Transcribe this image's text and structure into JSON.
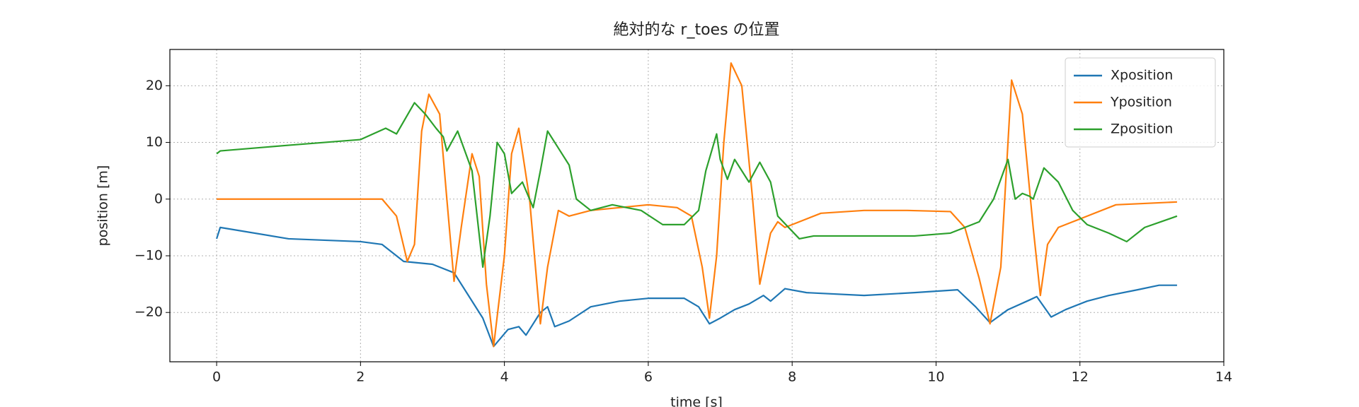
{
  "chart_data": {
    "type": "line",
    "title": "絶対的な r_toes の位置",
    "xlabel": "time [s]",
    "ylabel": "position [m]",
    "xlim": [
      -0.65,
      14
    ],
    "ylim": [
      -28.7,
      26.4
    ],
    "xticks": [
      0,
      2,
      4,
      6,
      8,
      10,
      12,
      14
    ],
    "yticks": [
      {
        "value": -20,
        "label": "−20"
      },
      {
        "value": -10,
        "label": "−10"
      },
      0,
      10,
      20
    ],
    "grid": true,
    "legend": "upper right",
    "series": [
      {
        "name": "Xposition",
        "color": "#1f77b4",
        "x": [
          0,
          0.05,
          1,
          2,
          2.3,
          2.6,
          3.0,
          3.3,
          3.5,
          3.7,
          3.85,
          4.05,
          4.2,
          4.3,
          4.5,
          4.6,
          4.7,
          4.9,
          5.2,
          5.6,
          6.0,
          6.5,
          6.7,
          6.85,
          7.0,
          7.2,
          7.4,
          7.6,
          7.7,
          7.9,
          8.2,
          9.0,
          9.7,
          10.3,
          10.55,
          10.75,
          11.0,
          11.3,
          11.4,
          11.6,
          11.8,
          12.1,
          12.4,
          12.8,
          13.1,
          13.35
        ],
        "values": [
          -7,
          -5,
          -7,
          -7.5,
          -8,
          -11,
          -11.5,
          -13,
          -17,
          -21,
          -26,
          -23,
          -22.5,
          -24,
          -20,
          -19,
          -22.5,
          -21.5,
          -19,
          -18,
          -17.5,
          -17.5,
          -19,
          -22,
          -21,
          -19.5,
          -18.5,
          -17,
          -18,
          -15.8,
          -16.5,
          -17,
          -16.5,
          -16,
          -19,
          -21.8,
          -19.5,
          -17.8,
          -17.2,
          -20.8,
          -19.5,
          -18,
          -17,
          -16,
          -15.2,
          -15.2
        ]
      },
      {
        "name": "Yposition",
        "color": "#ff7f0e",
        "x": [
          0,
          2.2,
          2.3,
          2.5,
          2.65,
          2.75,
          2.85,
          2.95,
          3.1,
          3.2,
          3.3,
          3.4,
          3.55,
          3.65,
          3.75,
          3.85,
          4.0,
          4.1,
          4.2,
          4.35,
          4.5,
          4.6,
          4.75,
          4.9,
          5.2,
          5.6,
          6.0,
          6.4,
          6.6,
          6.75,
          6.85,
          6.95,
          7.05,
          7.15,
          7.3,
          7.45,
          7.55,
          7.7,
          7.8,
          7.9,
          8.0,
          8.4,
          9.0,
          9.6,
          10.2,
          10.4,
          10.6,
          10.75,
          10.9,
          11.0,
          11.05,
          11.2,
          11.35,
          11.45,
          11.55,
          11.7,
          11.9,
          12.1,
          12.5,
          13.35
        ],
        "values": [
          0,
          0,
          0,
          -3,
          -11,
          -8,
          12,
          18.5,
          15,
          0,
          -14.5,
          -5,
          8,
          4,
          -15,
          -26,
          -10,
          8,
          12.5,
          0,
          -22,
          -12,
          -2,
          -3,
          -2,
          -1.5,
          -1,
          -1.5,
          -3,
          -12,
          -21,
          -10,
          10,
          24,
          20,
          0,
          -15,
          -6,
          -4,
          -5,
          -4.5,
          -2.5,
          -2,
          -2,
          -2.2,
          -5,
          -14,
          -22,
          -12,
          10,
          21,
          15,
          -5,
          -17,
          -8,
          -5,
          -4,
          -3,
          -1,
          -0.5
        ]
      },
      {
        "name": "Zposition",
        "color": "#2ca02c",
        "x": [
          0,
          0.05,
          1,
          2,
          2.35,
          2.5,
          2.75,
          2.9,
          3.05,
          3.15,
          3.2,
          3.35,
          3.55,
          3.7,
          3.8,
          3.9,
          4.0,
          4.1,
          4.25,
          4.4,
          4.5,
          4.6,
          4.75,
          4.9,
          5.0,
          5.2,
          5.5,
          5.9,
          6.2,
          6.5,
          6.7,
          6.8,
          6.95,
          7.0,
          7.1,
          7.2,
          7.4,
          7.55,
          7.7,
          7.8,
          8.1,
          8.3,
          9.0,
          9.7,
          10.2,
          10.4,
          10.6,
          10.8,
          11.0,
          11.1,
          11.2,
          11.3,
          11.35,
          11.5,
          11.7,
          11.9,
          12.1,
          12.4,
          12.65,
          12.9,
          13.35
        ],
        "values": [
          8,
          8.5,
          9.5,
          10.5,
          12.5,
          11.5,
          17,
          15,
          12.5,
          11,
          8.5,
          12,
          5,
          -12,
          -3,
          10,
          8,
          1,
          3,
          -1.5,
          5,
          12,
          9,
          6,
          0,
          -2,
          -1,
          -2,
          -4.5,
          -4.5,
          -2,
          5,
          11.5,
          7,
          3.5,
          7,
          3,
          6.5,
          3,
          -3,
          -7,
          -6.5,
          -6.5,
          -6.5,
          -6,
          -5,
          -4,
          0,
          7,
          0,
          1,
          0.5,
          0,
          5.5,
          3,
          -2,
          -4.5,
          -6,
          -7.5,
          -5,
          -3
        ]
      }
    ]
  }
}
